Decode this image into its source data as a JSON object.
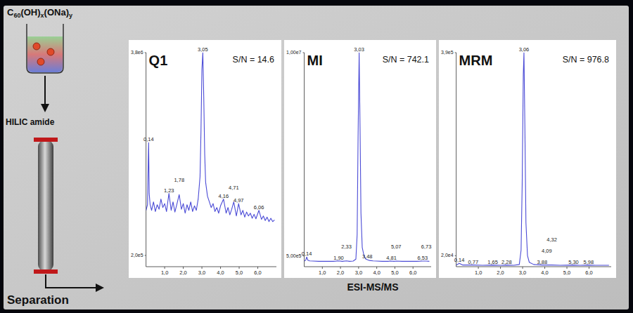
{
  "diagram": {
    "compound": "C60(OH)x(ONa)y",
    "column": "HILIC amide",
    "step": "Separation",
    "detection": "ESI-MS/MS"
  },
  "chart_data": [
    {
      "type": "line",
      "title": "Q1",
      "subtitle": "S/N = 14.6",
      "color": "#4b4bd6",
      "grid": false,
      "xlim": [
        0,
        7
      ],
      "xticks": [
        {
          "value": 1,
          "label": "1,0"
        },
        {
          "value": 2,
          "label": "2,0"
        },
        {
          "value": 3,
          "label": "3,0"
        },
        {
          "value": 4,
          "label": "4,0"
        },
        {
          "value": 5,
          "label": "5,0"
        },
        {
          "value": 6,
          "label": "6,0"
        }
      ],
      "ylim": [
        0,
        3800000.0
      ],
      "yticks": [
        {
          "value": 200000.0,
          "label": "2,0e5"
        },
        {
          "value": 3800000.0,
          "label": "3,8e6"
        }
      ],
      "x": [
        0,
        0.08,
        0.12,
        0.14,
        0.17,
        0.22,
        0.3,
        0.4,
        0.5,
        0.6,
        0.7,
        0.8,
        0.9,
        1.0,
        1.1,
        1.23,
        1.35,
        1.45,
        1.55,
        1.65,
        1.78,
        1.9,
        2.0,
        2.1,
        2.2,
        2.3,
        2.4,
        2.5,
        2.6,
        2.7,
        2.8,
        2.9,
        2.95,
        3.0,
        3.05,
        3.1,
        3.15,
        3.2,
        3.3,
        3.4,
        3.5,
        3.6,
        3.7,
        3.8,
        3.9,
        4.0,
        4.16,
        4.3,
        4.4,
        4.5,
        4.6,
        4.71,
        4.85,
        4.97,
        5.1,
        5.2,
        5.3,
        5.4,
        5.5,
        5.6,
        5.7,
        5.8,
        5.9,
        6.06,
        6.2,
        6.3,
        6.4,
        6.5,
        6.6,
        6.7,
        6.8,
        6.9
      ],
      "values": [
        1000000.0,
        1100000.0,
        1900000.0,
        2200000.0,
        1300000.0,
        1100000.0,
        1000000.0,
        1150000.0,
        980000.0,
        1100000.0,
        1020000.0,
        1200000.0,
        1050000.0,
        1120000.0,
        980000.0,
        1300000.0,
        1000000.0,
        1150000.0,
        970000.0,
        1100000.0,
        1280000.0,
        1020000.0,
        1120000.0,
        950000.0,
        1100000.0,
        1000000.0,
        1150000.0,
        980000.0,
        1080000.0,
        1000000.0,
        1200000.0,
        1600000.0,
        2400000.0,
        3500000.0,
        3800000.0,
        3000000.0,
        2000000.0,
        1500000.0,
        1250000.0,
        1150000.0,
        1050000.0,
        1120000.0,
        980000.0,
        1050000.0,
        950000.0,
        1080000.0,
        1200000.0,
        950000.0,
        1050000.0,
        920000.0,
        1020000.0,
        1150000.0,
        900000.0,
        1120000.0,
        920000.0,
        1000000.0,
        880000.0,
        970000.0,
        900000.0,
        950000.0,
        860000.0,
        930000.0,
        850000.0,
        1000000.0,
        840000.0,
        900000.0,
        820000.0,
        880000.0,
        800000.0,
        860000.0,
        800000.0,
        830000.0
      ],
      "annotations": [
        {
          "x": 3.05,
          "label": "3,05"
        },
        {
          "x": 0.14,
          "label": "0,14"
        },
        {
          "x": 1.23,
          "label": "1,23"
        },
        {
          "x": 1.78,
          "label": "1,78"
        },
        {
          "x": 4.16,
          "label": "4,16"
        },
        {
          "x": 4.71,
          "label": "4,71"
        },
        {
          "x": 4.97,
          "label": "4,97"
        },
        {
          "x": 6.06,
          "label": "6,06"
        }
      ]
    },
    {
      "type": "line",
      "title": "MI",
      "subtitle": "S/N = 742.1",
      "color": "#4b4bd6",
      "grid": false,
      "xlim": [
        0,
        7
      ],
      "xticks": [
        {
          "value": 1,
          "label": "1,0"
        },
        {
          "value": 2,
          "label": "2,0"
        },
        {
          "value": 3,
          "label": "3,0"
        },
        {
          "value": 4,
          "label": "4,0"
        },
        {
          "value": 5,
          "label": "5,0"
        },
        {
          "value": 6,
          "label": "6,0"
        }
      ],
      "ylim": [
        0,
        10000000.0
      ],
      "yticks": [
        {
          "value": 500000.0,
          "label": "5,00e5"
        },
        {
          "value": 10000000.0,
          "label": "1,00e7"
        }
      ],
      "x": [
        0,
        0.08,
        0.14,
        0.2,
        0.3,
        0.5,
        0.8,
        1.0,
        1.3,
        1.6,
        1.9,
        2.1,
        2.33,
        2.5,
        2.7,
        2.85,
        2.92,
        2.97,
        3.03,
        3.08,
        3.13,
        3.2,
        3.3,
        3.4,
        3.48,
        3.6,
        3.8,
        4.0,
        4.3,
        4.6,
        4.81,
        4.95,
        5.07,
        5.4,
        5.8,
        6.2,
        6.53,
        6.73,
        6.9
      ],
      "values": [
        260000.0,
        300000.0,
        450000.0,
        300000.0,
        270000.0,
        260000.0,
        250000.0,
        250000.0,
        250000.0,
        250000.0,
        270000.0,
        250000.0,
        270000.0,
        250000.0,
        260000.0,
        350000.0,
        1500000.0,
        6000000.0,
        10000000.0,
        6500000.0,
        2500000.0,
        900000.0,
        500000.0,
        350000.0,
        330000.0,
        290000.0,
        270000.0,
        260000.0,
        250000.0,
        250000.0,
        260000.0,
        250000.0,
        260000.0,
        250000.0,
        250000.0,
        250000.0,
        260000.0,
        260000.0,
        250000.0
      ],
      "annotations": [
        {
          "x": 3.03,
          "label": "3,03"
        },
        {
          "x": 0.14,
          "label": "0,14"
        },
        {
          "x": 1.9,
          "label": "1,90"
        },
        {
          "x": 2.33,
          "label": "2,33"
        },
        {
          "x": 3.48,
          "label": "3,48"
        },
        {
          "x": 4.81,
          "label": "4,81"
        },
        {
          "x": 5.07,
          "label": "5,07"
        },
        {
          "x": 6.53,
          "label": "6,53"
        },
        {
          "x": 6.73,
          "label": "6,73"
        }
      ]
    },
    {
      "type": "line",
      "title": "MRM",
      "subtitle": "S/N = 976.8",
      "color": "#4b4bd6",
      "grid": false,
      "xlim": [
        0,
        7
      ],
      "xticks": [
        {
          "value": 1,
          "label": "1,0"
        },
        {
          "value": 2,
          "label": "2,0"
        },
        {
          "value": 3,
          "label": "3,0"
        },
        {
          "value": 4,
          "label": "4,0"
        },
        {
          "value": 5,
          "label": "5,0"
        },
        {
          "value": 6,
          "label": "6,0"
        }
      ],
      "ylim": [
        0,
        390000.0
      ],
      "yticks": [
        {
          "value": 20000.0,
          "label": "2,0e4"
        },
        {
          "value": 390000.0,
          "label": "3,9e5"
        }
      ],
      "x": [
        0,
        0.14,
        0.3,
        0.77,
        1.2,
        1.65,
        2.0,
        2.28,
        2.6,
        2.85,
        2.93,
        2.98,
        3.03,
        3.06,
        3.1,
        3.15,
        3.22,
        3.3,
        3.5,
        3.88,
        4.09,
        4.32,
        4.7,
        5.3,
        5.6,
        5.98,
        6.3,
        6.9
      ],
      "values": [
        3000.0,
        6000.0,
        3000.0,
        3000.0,
        2500.0,
        3000.0,
        2500.0,
        3000.0,
        2500.0,
        4000.0,
        30000.0,
        150000.0,
        350000.0,
        390000.0,
        260000.0,
        80000.0,
        20000.0,
        8000.0,
        4000.0,
        3000.0,
        3000.0,
        3000.0,
        2500.0,
        3000.0,
        2500.0,
        3000.0,
        2500.0,
        2500.0
      ],
      "annotations": [
        {
          "x": 3.06,
          "label": "3,06"
        },
        {
          "x": 0.14,
          "label": "0,14"
        },
        {
          "x": 0.77,
          "label": "0,77"
        },
        {
          "x": 1.65,
          "label": "1,65"
        },
        {
          "x": 2.28,
          "label": "2,28"
        },
        {
          "x": 3.88,
          "label": "3,88"
        },
        {
          "x": 4.09,
          "label": "4,09"
        },
        {
          "x": 4.32,
          "label": "4,32"
        },
        {
          "x": 5.3,
          "label": "5,30"
        },
        {
          "x": 5.98,
          "label": "5,98"
        }
      ]
    }
  ]
}
